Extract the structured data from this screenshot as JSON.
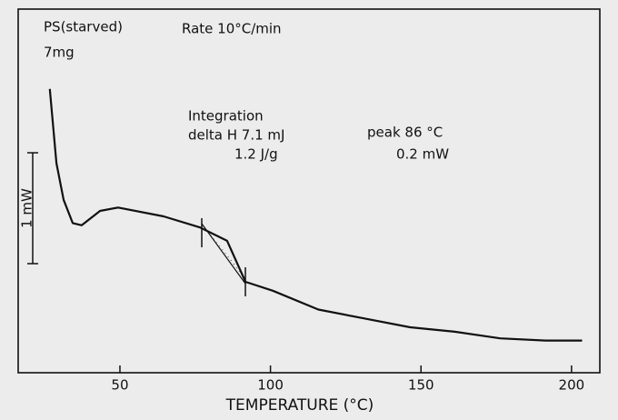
{
  "chart_data": {
    "type": "line",
    "x_label": "TEMPERATURE (°C)",
    "annotations": [
      "PS(starved)",
      "7mg",
      "Rate 10°C/min",
      "Integration",
      "delta H  7.1 mJ",
      "1.2 J/g",
      "peak  86 °C",
      "0.2 mW"
    ],
    "scale_bar": {
      "value": 1,
      "label": "1 mW"
    },
    "series": [
      {
        "name": "PS(starved)",
        "color": "#111111",
        "x": [
          26.7,
          28.9,
          31.3,
          34.3,
          37.3,
          43.4,
          49.4,
          64.5,
          76.6,
          85.6,
          91.7,
          100.8,
          115.9,
          131.0,
          146.4,
          161.2,
          176.3,
          191.4,
          203.5
        ],
        "values": [
          2.56,
          1.89,
          1.56,
          1.35,
          1.33,
          1.46,
          1.49,
          1.41,
          1.31,
          1.19,
          0.82,
          0.74,
          0.57,
          0.49,
          0.41,
          0.37,
          0.31,
          0.29,
          0.29
        ]
      }
    ],
    "xlim": [
      16.2,
      209.4
    ],
    "xticks": [
      50,
      100,
      150,
      200
    ],
    "ylim": [
      0,
      3.28
    ]
  }
}
